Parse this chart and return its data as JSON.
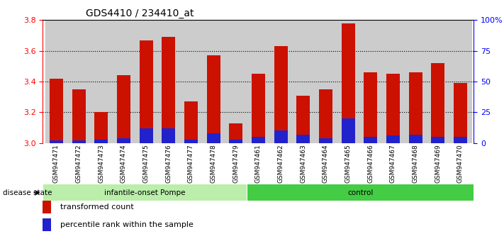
{
  "title": "GDS4410 / 234410_at",
  "samples": [
    "GSM947471",
    "GSM947472",
    "GSM947473",
    "GSM947474",
    "GSM947475",
    "GSM947476",
    "GSM947477",
    "GSM947478",
    "GSM947479",
    "GSM947461",
    "GSM947462",
    "GSM947463",
    "GSM947464",
    "GSM947465",
    "GSM947466",
    "GSM947467",
    "GSM947468",
    "GSM947469",
    "GSM947470"
  ],
  "transformed_count": [
    3.42,
    3.35,
    3.2,
    3.44,
    3.67,
    3.69,
    3.27,
    3.57,
    3.13,
    3.45,
    3.63,
    3.31,
    3.35,
    3.78,
    3.46,
    3.45,
    3.46,
    3.52,
    3.39
  ],
  "percentile_rank": [
    2,
    2,
    3,
    4,
    12,
    12,
    3,
    8,
    3,
    5,
    10,
    7,
    4,
    20,
    5,
    6,
    7,
    5,
    5
  ],
  "base_value": 3.0,
  "ylim": [
    3.0,
    3.8
  ],
  "y_ticks": [
    3.0,
    3.2,
    3.4,
    3.6,
    3.8
  ],
  "right_y_ticks": [
    0,
    25,
    50,
    75,
    100
  ],
  "right_y_labels": [
    "0",
    "25",
    "50",
    "75",
    "100%"
  ],
  "bar_color": "#cc1100",
  "blue_color": "#2222cc",
  "bg_color": "#ffffff",
  "col_bg_color": "#cccccc",
  "group1_label": "infantile-onset Pompe",
  "group2_label": "control",
  "group1_color": "#bbeeaa",
  "group2_color": "#44cc44",
  "disease_state_label": "disease state",
  "legend1": "transformed count",
  "legend2": "percentile rank within the sample",
  "group1_count": 9,
  "group2_count": 10,
  "bar_width": 0.6,
  "title_fontsize": 10,
  "tick_label_fontsize": 6.5,
  "gridline_ticks": [
    3.2,
    3.4,
    3.6
  ]
}
